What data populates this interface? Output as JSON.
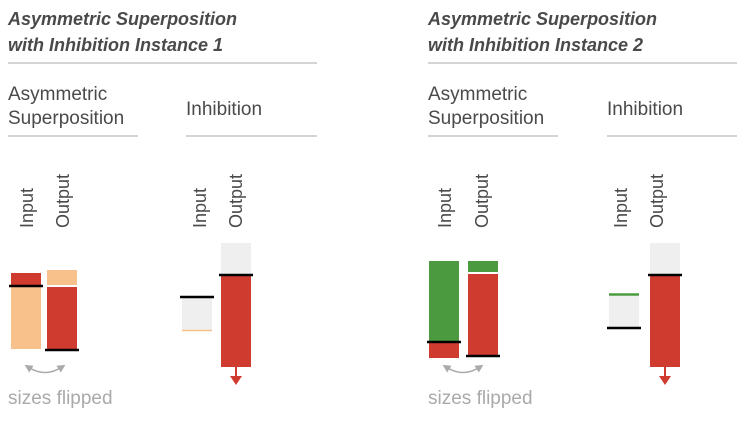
{
  "instances": [
    {
      "title_line1": "Asymmetric Superposition",
      "title_line2": "with Inhibition Instance 1",
      "asym_label_line1": "Asymmetric",
      "asym_label_line2": "Superposition",
      "inhib_label": "Inhibition",
      "input_label": "Input",
      "output_label": "Output",
      "note": "sizes flipped"
    },
    {
      "title_line1": "Asymmetric Superposition",
      "title_line2": "with Inhibition Instance 2",
      "asym_label_line1": "Asymmetric",
      "asym_label_line2": "Superposition",
      "inhib_label": "Inhibition",
      "input_label": "Input",
      "output_label": "Output",
      "note": "sizes flipped"
    }
  ],
  "colors": {
    "red": "#d03b30",
    "light_orange": "#f8c08a",
    "green": "#4c9a3f",
    "light_gray": "#efefef",
    "dark_text": "#4a4a4a",
    "muted_text": "#aaaaaa",
    "rule": "#bbbbbb",
    "arrow_gray": "#aaaaaa"
  }
}
